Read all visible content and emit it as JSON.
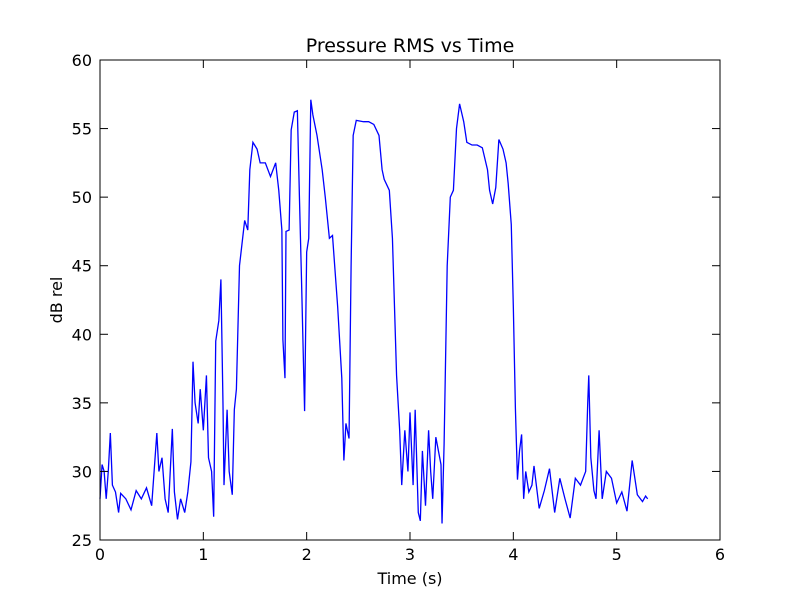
{
  "chart_data": {
    "type": "line",
    "title": "Pressure RMS vs Time",
    "xlabel": "Time (s)",
    "ylabel": "dB rel",
    "color": "#0000ff",
    "x": [
      0.0,
      0.02,
      0.04,
      0.06,
      0.08,
      0.1,
      0.12,
      0.15,
      0.18,
      0.2,
      0.25,
      0.3,
      0.35,
      0.4,
      0.45,
      0.5,
      0.55,
      0.57,
      0.6,
      0.63,
      0.66,
      0.7,
      0.72,
      0.75,
      0.78,
      0.82,
      0.85,
      0.88,
      0.9,
      0.92,
      0.95,
      0.97,
      1.0,
      1.03,
      1.05,
      1.08,
      1.1,
      1.12,
      1.15,
      1.17,
      1.19,
      1.2,
      1.23,
      1.25,
      1.28,
      1.3,
      1.32,
      1.35,
      1.4,
      1.43,
      1.45,
      1.48,
      1.52,
      1.55,
      1.6,
      1.65,
      1.7,
      1.73,
      1.76,
      1.77,
      1.79,
      1.8,
      1.83,
      1.85,
      1.88,
      1.91,
      1.93,
      1.95,
      1.98,
      2.0,
      2.02,
      2.04,
      2.06,
      2.1,
      2.15,
      2.18,
      2.22,
      2.25,
      2.3,
      2.34,
      2.36,
      2.38,
      2.41,
      2.43,
      2.45,
      2.48,
      2.55,
      2.6,
      2.65,
      2.7,
      2.73,
      2.75,
      2.8,
      2.83,
      2.87,
      2.9,
      2.92,
      2.95,
      2.98,
      3.0,
      3.03,
      3.05,
      3.08,
      3.1,
      3.12,
      3.15,
      3.18,
      3.2,
      3.22,
      3.25,
      3.3,
      3.31,
      3.33,
      3.36,
      3.39,
      3.42,
      3.45,
      3.48,
      3.52,
      3.55,
      3.6,
      3.65,
      3.7,
      3.75,
      3.77,
      3.8,
      3.83,
      3.86,
      3.9,
      3.93,
      3.95,
      3.98,
      4.0,
      4.02,
      4.04,
      4.06,
      4.08,
      4.1,
      4.12,
      4.15,
      4.18,
      4.2,
      4.25,
      4.3,
      4.35,
      4.4,
      4.45,
      4.5,
      4.55,
      4.6,
      4.65,
      4.7,
      4.72,
      4.73,
      4.75,
      4.78,
      4.8,
      4.83,
      4.86,
      4.9,
      4.95,
      5.0,
      5.05,
      5.1,
      5.15,
      5.2,
      5.25,
      5.28,
      5.3
    ],
    "values": [
      28,
      30.5,
      30,
      28,
      30,
      32.8,
      29,
      28.5,
      27,
      28.4,
      28,
      27.2,
      28.6,
      28,
      28.8,
      27.5,
      32.8,
      30,
      31,
      28,
      27,
      33.1,
      28.5,
      26.5,
      28,
      27,
      28.5,
      30.7,
      38,
      35,
      33.5,
      36,
      33,
      37,
      31,
      30,
      26.7,
      39.5,
      41,
      44,
      35,
      29,
      34.5,
      30,
      28.3,
      34.5,
      36,
      45,
      48.3,
      47.6,
      52,
      54,
      53.5,
      52.5,
      52.5,
      51.5,
      52.5,
      50.5,
      47.6,
      39.6,
      36.8,
      47.5,
      47.6,
      54.9,
      56.2,
      56.3,
      50,
      44,
      34.4,
      46,
      47,
      57.1,
      56,
      54.5,
      52,
      50,
      47,
      47.2,
      42,
      36.8,
      30.8,
      33.5,
      32.4,
      45,
      54.5,
      55.6,
      55.5,
      55.5,
      55.3,
      54.5,
      52,
      51.3,
      50.5,
      47,
      37,
      33,
      29,
      33,
      30,
      34.3,
      29,
      34.5,
      27,
      26.4,
      31.5,
      27.5,
      33,
      30,
      28,
      32.5,
      30.5,
      26.2,
      32,
      45,
      50,
      50.5,
      55,
      56.8,
      55.5,
      54,
      53.8,
      53.8,
      53.6,
      52,
      50.5,
      49.5,
      50.7,
      54.2,
      53.5,
      52.5,
      51,
      48,
      42,
      34.6,
      29.4,
      31.5,
      32.7,
      28,
      30,
      28.5,
      29,
      30.4,
      27.3,
      28.6,
      30.2,
      27,
      29.5,
      28,
      26.6,
      29.5,
      29,
      30,
      35,
      37,
      31,
      28.6,
      28,
      33,
      28,
      30,
      29.5,
      27.7,
      28.5,
      27.1,
      30.8,
      28.3,
      27.8,
      28.2,
      28
    ],
    "xlim": [
      0,
      6
    ],
    "xticks": [
      0,
      1,
      2,
      3,
      4,
      5,
      6
    ],
    "ylim": [
      25,
      60
    ],
    "yticks": [
      25,
      30,
      35,
      40,
      45,
      50,
      55,
      60
    ]
  }
}
